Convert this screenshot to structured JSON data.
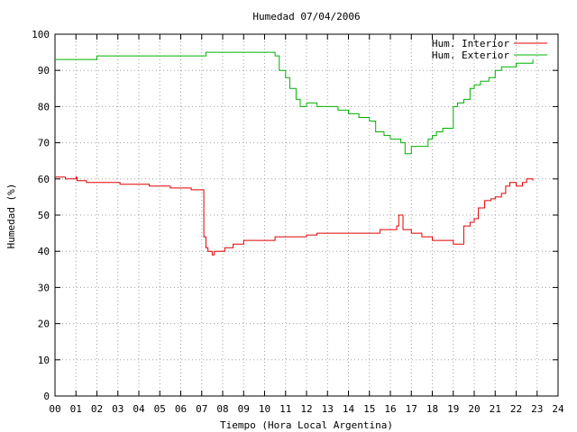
{
  "chart_data": {
    "type": "line",
    "title": "Humedad 07/04/2006",
    "xlabel": "Tiempo (Hora Local Argentina)",
    "ylabel": "Humedad (%)",
    "xlim": [
      0,
      24
    ],
    "ylim": [
      0,
      100
    ],
    "grid": true,
    "legend_position": "top-right",
    "x_ticks": [
      "00",
      "01",
      "02",
      "03",
      "04",
      "05",
      "06",
      "07",
      "08",
      "09",
      "10",
      "11",
      "12",
      "13",
      "14",
      "15",
      "16",
      "17",
      "18",
      "19",
      "20",
      "21",
      "22",
      "23",
      "24"
    ],
    "y_ticks": [
      "0",
      "10",
      "20",
      "30",
      "40",
      "50",
      "60",
      "70",
      "80",
      "90",
      "100"
    ],
    "series": [
      {
        "name": "Hum. Interior",
        "color": "#e00000",
        "x": [
          0.0,
          0.4,
          0.5,
          0.6,
          1.0,
          1.05,
          1.5,
          2.0,
          2.1,
          3.0,
          3.1,
          3.5,
          4.0,
          4.5,
          5.0,
          5.5,
          6.0,
          6.5,
          6.6,
          7.0,
          7.1,
          7.2,
          7.3,
          7.5,
          7.6,
          7.9,
          8.1,
          8.5,
          9.0,
          9.5,
          10.0,
          10.5,
          11.0,
          11.5,
          12.0,
          12.5,
          13.0,
          14.0,
          15.0,
          15.5,
          16.0,
          16.3,
          16.4,
          16.6,
          17.0,
          17.5,
          18.0,
          18.5,
          19.0,
          19.2,
          19.5,
          19.8,
          20.0,
          20.2,
          20.5,
          20.8,
          21.0,
          21.3,
          21.5,
          21.7,
          22.0,
          22.3,
          22.5,
          22.8
        ],
        "y": [
          60.5,
          60.5,
          60,
          60,
          60.5,
          59.5,
          59,
          59,
          59,
          59,
          58.5,
          58.5,
          58.5,
          58,
          58,
          57.5,
          57.5,
          57,
          57,
          57,
          44,
          41,
          40,
          39,
          40,
          40,
          41,
          42,
          43,
          43,
          43,
          44,
          44,
          44,
          44.5,
          45,
          45,
          45,
          45,
          46,
          46,
          47,
          50,
          46,
          45,
          44,
          43,
          43,
          42,
          42,
          47,
          48,
          49,
          52,
          54,
          54.5,
          55,
          56,
          58,
          59,
          58,
          59,
          60,
          59.5
        ]
      },
      {
        "name": "Hum. Exterior",
        "color": "#00b000",
        "x": [
          0.0,
          0.5,
          1.0,
          1.5,
          2.0,
          2.5,
          3.0,
          3.5,
          4.0,
          5.0,
          6.0,
          7.0,
          7.2,
          8.0,
          9.0,
          10.0,
          10.5,
          10.7,
          11.0,
          11.2,
          11.5,
          11.7,
          12.0,
          12.5,
          13.0,
          13.5,
          14.0,
          14.5,
          14.7,
          15.0,
          15.3,
          15.7,
          16.0,
          16.3,
          16.5,
          16.7,
          17.0,
          17.3,
          17.5,
          17.8,
          18.0,
          18.2,
          18.5,
          19.0,
          19.2,
          19.5,
          19.8,
          20.0,
          20.3,
          20.7,
          21.0,
          21.3,
          21.7,
          22.0,
          22.5,
          22.8
        ],
        "y": [
          93,
          93,
          93,
          93,
          94,
          94,
          94,
          94,
          94,
          94,
          94,
          94,
          95,
          95,
          95,
          95,
          94,
          90,
          88,
          85,
          82,
          80,
          81,
          80,
          80,
          79,
          78,
          77,
          77,
          76,
          73,
          72,
          71,
          71,
          70,
          67,
          69,
          69,
          69,
          71,
          72,
          73,
          74,
          80,
          81,
          82,
          85,
          86,
          87,
          88,
          90,
          91,
          91,
          92,
          92,
          93
        ]
      }
    ]
  }
}
